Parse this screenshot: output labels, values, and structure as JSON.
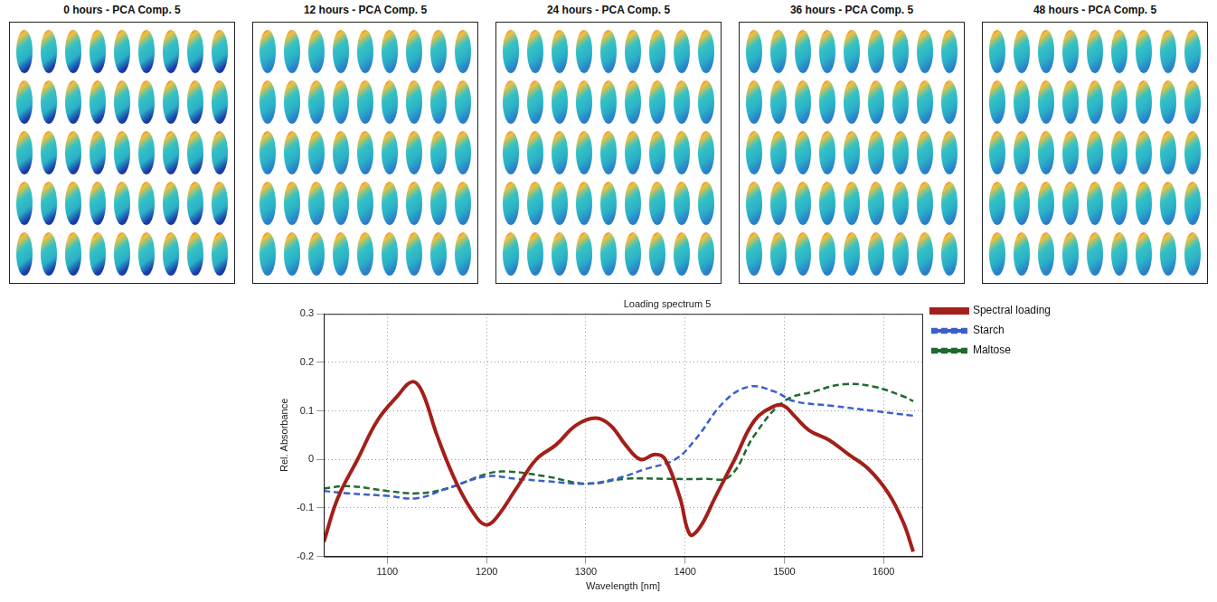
{
  "panels": [
    {
      "title": "0 hours - PCA Comp. 5"
    },
    {
      "title": "12 hours - PCA Comp. 5"
    },
    {
      "title": "24 hours - PCA Comp. 5"
    },
    {
      "title": "36 hours - PCA Comp. 5"
    },
    {
      "title": "48 hours - PCA Comp. 5"
    }
  ],
  "chart_data": {
    "type": "line",
    "title": "Loading spectrum 5",
    "x_label": "Wavelength [nm]",
    "y_label": "Rel. Absorbance",
    "xlim": [
      1036,
      1639
    ],
    "xticks": [
      1100,
      1200,
      1300,
      1400,
      1500,
      1600
    ],
    "ylim": [
      -0.2,
      0.3
    ],
    "yticks": [
      -0.2,
      -0.1,
      0,
      0.1,
      0.2,
      0.3
    ],
    "grid": true,
    "legend": "right",
    "series": [
      {
        "name": "Spectral loading",
        "color": "#a31f1a",
        "line_style": "solid",
        "x": [
          1036,
          1050,
          1070,
          1090,
          1110,
          1125,
          1135,
          1150,
          1170,
          1190,
          1200,
          1210,
          1230,
          1250,
          1270,
          1290,
          1310,
          1325,
          1340,
          1355,
          1370,
          1380,
          1395,
          1405,
          1415,
          1430,
          1450,
          1470,
          1490,
          1500,
          1510,
          1525,
          1545,
          1565,
          1585,
          1605,
          1620,
          1630
        ],
        "values": [
          -0.17,
          -0.08,
          0.0,
          0.08,
          0.13,
          0.16,
          0.14,
          0.05,
          -0.05,
          -0.12,
          -0.135,
          -0.12,
          -0.06,
          0.0,
          0.03,
          0.07,
          0.085,
          0.07,
          0.03,
          0.0,
          0.01,
          0.0,
          -0.08,
          -0.155,
          -0.14,
          -0.08,
          0.0,
          0.08,
          0.11,
          0.11,
          0.09,
          0.06,
          0.04,
          0.01,
          -0.02,
          -0.07,
          -0.13,
          -0.19
        ]
      },
      {
        "name": "Starch",
        "color": "#3a5fcd",
        "line_style": "dashed",
        "x": [
          1036,
          1060,
          1100,
          1130,
          1160,
          1200,
          1230,
          1260,
          1300,
          1330,
          1360,
          1390,
          1410,
          1440,
          1465,
          1490,
          1510,
          1550,
          1590,
          1630
        ],
        "values": [
          -0.065,
          -0.07,
          -0.075,
          -0.08,
          -0.06,
          -0.035,
          -0.04,
          -0.045,
          -0.05,
          -0.04,
          -0.02,
          0.0,
          0.04,
          0.12,
          0.15,
          0.14,
          0.12,
          0.11,
          0.1,
          0.09
        ]
      },
      {
        "name": "Maltose",
        "color": "#1e6b2e",
        "line_style": "dashed",
        "x": [
          1036,
          1060,
          1100,
          1130,
          1160,
          1200,
          1220,
          1260,
          1300,
          1340,
          1380,
          1420,
          1445,
          1470,
          1500,
          1530,
          1560,
          1590,
          1620,
          1630
        ],
        "values": [
          -0.06,
          -0.055,
          -0.065,
          -0.07,
          -0.06,
          -0.03,
          -0.025,
          -0.035,
          -0.05,
          -0.04,
          -0.04,
          -0.04,
          -0.035,
          0.05,
          0.12,
          0.14,
          0.155,
          0.15,
          0.13,
          0.12
        ]
      }
    ]
  }
}
